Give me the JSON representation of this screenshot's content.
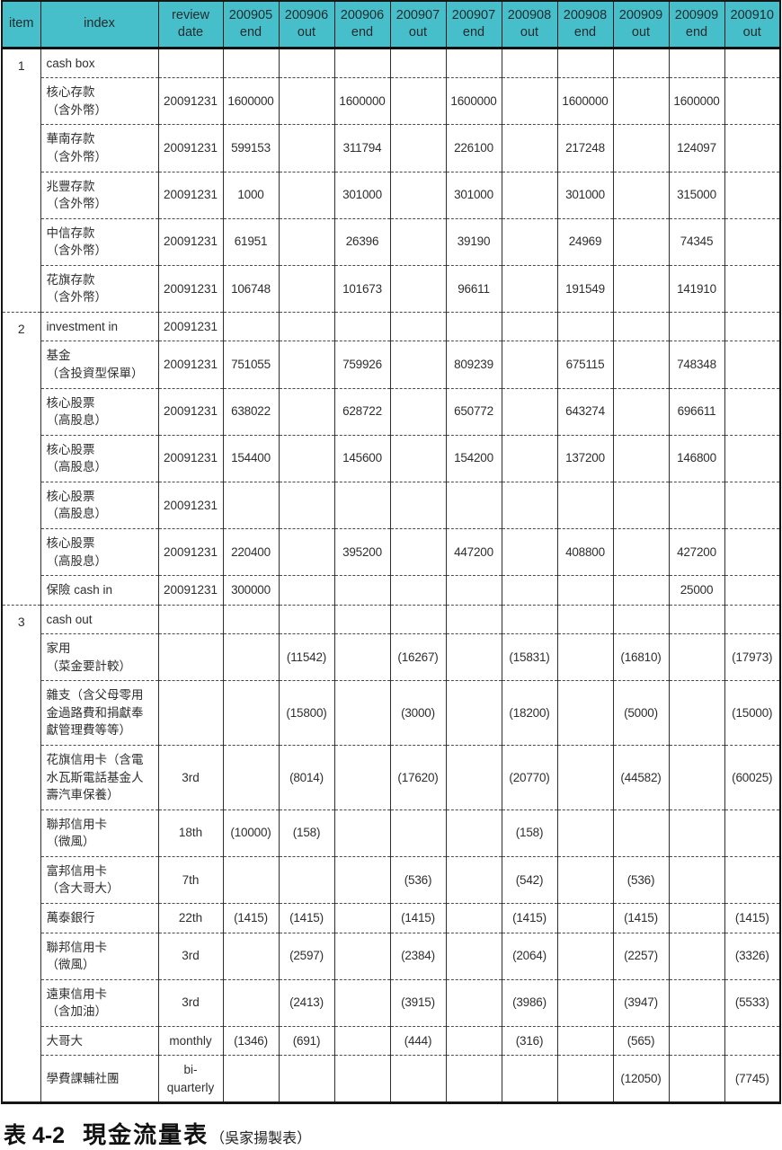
{
  "colors": {
    "header_bg": "#47bfcb",
    "border": "#161616",
    "dashed_line": "#4a4a4a",
    "text": "#2e2e2e"
  },
  "header": {
    "item": "item",
    "index": "index",
    "review_lines": [
      "review",
      "date"
    ],
    "periods": [
      {
        "period": "200905",
        "type": "end"
      },
      {
        "period": "200906",
        "type": "out"
      },
      {
        "period": "200906",
        "type": "end"
      },
      {
        "period": "200907",
        "type": "out"
      },
      {
        "period": "200907",
        "type": "end"
      },
      {
        "period": "200908",
        "type": "out"
      },
      {
        "period": "200908",
        "type": "end"
      },
      {
        "period": "200909",
        "type": "out"
      },
      {
        "period": "200909",
        "type": "end"
      },
      {
        "period": "200910",
        "type": "out"
      }
    ]
  },
  "rows": [
    {
      "item": "1",
      "item_span": 6,
      "label_lines": [
        "cash box"
      ],
      "review": "",
      "values": [
        "",
        "",
        "",
        "",
        "",
        "",
        "",
        "",
        "",
        ""
      ]
    },
    {
      "label_lines": [
        "核心存款",
        "（含外幣）"
      ],
      "review": "20091231",
      "values": [
        "1600000",
        "",
        "1600000",
        "",
        "1600000",
        "",
        "1600000",
        "",
        "1600000",
        ""
      ]
    },
    {
      "label_lines": [
        "華南存款",
        "（含外幣）"
      ],
      "review": "20091231",
      "values": [
        "599153",
        "",
        "311794",
        "",
        "226100",
        "",
        "217248",
        "",
        "124097",
        ""
      ]
    },
    {
      "label_lines": [
        "兆豐存款",
        "（含外幣）"
      ],
      "review": "20091231",
      "values": [
        "1000",
        "",
        "301000",
        "",
        "301000",
        "",
        "301000",
        "",
        "315000",
        ""
      ]
    },
    {
      "label_lines": [
        "中信存款",
        "（含外幣）"
      ],
      "review": "20091231",
      "values": [
        "61951",
        "",
        "26396",
        "",
        "39190",
        "",
        "24969",
        "",
        "74345",
        ""
      ]
    },
    {
      "label_lines": [
        "花旗存款",
        "（含外幣）"
      ],
      "review": "20091231",
      "values": [
        "106748",
        "",
        "101673",
        "",
        "96611",
        "",
        "191549",
        "",
        "141910",
        ""
      ]
    },
    {
      "item": "2",
      "item_span": 7,
      "label_lines": [
        "investment in"
      ],
      "review": "20091231",
      "values": [
        "",
        "",
        "",
        "",
        "",
        "",
        "",
        "",
        "",
        ""
      ]
    },
    {
      "label_lines": [
        "基金",
        "（含投資型保單）"
      ],
      "review": "20091231",
      "values": [
        "751055",
        "",
        "759926",
        "",
        "809239",
        "",
        "675115",
        "",
        "748348",
        ""
      ]
    },
    {
      "label_lines": [
        "核心股票",
        "（高股息）"
      ],
      "review": "20091231",
      "values": [
        "638022",
        "",
        "628722",
        "",
        "650772",
        "",
        "643274",
        "",
        "696611",
        ""
      ]
    },
    {
      "label_lines": [
        "核心股票",
        "（高股息）"
      ],
      "review": "20091231",
      "values": [
        "154400",
        "",
        "145600",
        "",
        "154200",
        "",
        "137200",
        "",
        "146800",
        ""
      ]
    },
    {
      "label_lines": [
        "核心股票",
        "（高股息）"
      ],
      "review": "20091231",
      "values": [
        "",
        "",
        "",
        "",
        "",
        "",
        "",
        "",
        "",
        ""
      ]
    },
    {
      "label_lines": [
        "核心股票",
        "（高股息）"
      ],
      "review": "20091231",
      "values": [
        "220400",
        "",
        "395200",
        "",
        "447200",
        "",
        "408800",
        "",
        "427200",
        ""
      ]
    },
    {
      "label_lines": [
        "保險 cash in"
      ],
      "review": "20091231",
      "values": [
        "300000",
        "",
        "",
        "",
        "",
        "",
        "",
        "",
        "25000",
        ""
      ]
    },
    {
      "item": "3",
      "item_span": 11,
      "label_lines": [
        "cash out"
      ],
      "review": "",
      "values": [
        "",
        "",
        "",
        "",
        "",
        "",
        "",
        "",
        "",
        ""
      ]
    },
    {
      "label_lines": [
        "家用",
        "（菜金要計較）"
      ],
      "review": "",
      "values": [
        "",
        "(11542)",
        "",
        "(16267)",
        "",
        "(15831)",
        "",
        "(16810)",
        "",
        "(17973)"
      ]
    },
    {
      "label_lines": [
        "雜支（含父母零用",
        "金過路費和捐獻奉",
        "獻管理費等等）"
      ],
      "review": "",
      "values": [
        "",
        "(15800)",
        "",
        "(3000)",
        "",
        "(18200)",
        "",
        "(5000)",
        "",
        "(15000)"
      ]
    },
    {
      "label_lines": [
        "花旗信用卡（含電",
        "水瓦斯電話基金人",
        "壽汽車保養）"
      ],
      "review": "3rd",
      "values": [
        "",
        "(8014)",
        "",
        "(17620)",
        "",
        "(20770)",
        "",
        "(44582)",
        "",
        "(60025)"
      ]
    },
    {
      "label_lines": [
        "聯邦信用卡",
        "（微風）"
      ],
      "review": "18th",
      "values": [
        "(10000)",
        "(158)",
        "",
        "",
        "",
        "(158)",
        "",
        "",
        "",
        ""
      ]
    },
    {
      "label_lines": [
        "富邦信用卡",
        "（含大哥大）"
      ],
      "review": "7th",
      "values": [
        "",
        "",
        "",
        "(536)",
        "",
        "(542)",
        "",
        "(536)",
        "",
        ""
      ]
    },
    {
      "label_lines": [
        "萬泰銀行"
      ],
      "review": "22th",
      "values": [
        "(1415)",
        "(1415)",
        "",
        "(1415)",
        "",
        "(1415)",
        "",
        "(1415)",
        "",
        "(1415)"
      ]
    },
    {
      "label_lines": [
        "聯邦信用卡",
        "（微風）"
      ],
      "review": "3rd",
      "values": [
        "",
        "(2597)",
        "",
        "(2384)",
        "",
        "(2064)",
        "",
        "(2257)",
        "",
        "(3326)"
      ]
    },
    {
      "label_lines": [
        "遠東信用卡",
        "（含加油）"
      ],
      "review": "3rd",
      "values": [
        "",
        "(2413)",
        "",
        "(3915)",
        "",
        "(3986)",
        "",
        "(3947)",
        "",
        "(5533)"
      ]
    },
    {
      "label_lines": [
        "大哥大"
      ],
      "review": "monthly",
      "values": [
        "(1346)",
        "(691)",
        "",
        "(444)",
        "",
        "(316)",
        "",
        "(565)",
        "",
        ""
      ]
    },
    {
      "label_lines": [
        "學費課輔社團"
      ],
      "review_lines": [
        "bi-",
        "quarterly"
      ],
      "review": "bi-quarterly",
      "values": [
        "",
        "",
        "",
        "",
        "",
        "",
        "",
        "(12050)",
        "",
        "(7745)"
      ]
    }
  ],
  "caption": {
    "label": "表 4-2",
    "title": "現金流量表",
    "credit": "（吳家揚製表）"
  }
}
